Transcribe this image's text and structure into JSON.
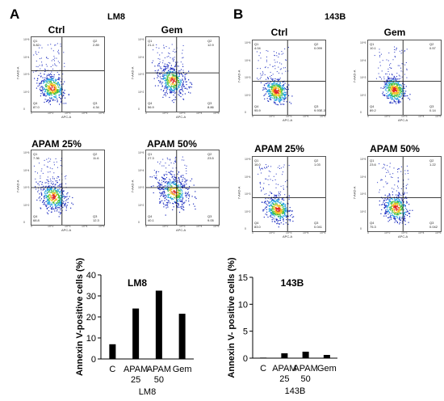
{
  "panels": [
    {
      "letter": "A",
      "cell_line": "LM8"
    },
    {
      "letter": "B",
      "cell_line": "143B"
    }
  ],
  "flow_plots": [
    {
      "id": "lm8-ctrl",
      "title": "Ctrl",
      "q1": "Q1\n5.82",
      "q2": "Q2\n2.89",
      "q3": "Q3\n4.34",
      "q4": "Q4\n87.0"
    },
    {
      "id": "lm8-gem",
      "title": "Gem",
      "q1": "Q1\n21.4",
      "q2": "Q2\n12.9",
      "q3": "Q3\n8.86",
      "q4": "Q4\n56.9"
    },
    {
      "id": "lm8-apam25",
      "title": "APAM 25%",
      "q1": "Q1\n7.36",
      "q2": "Q2\n11.6",
      "q3": "Q3\n12.3",
      "q4": "Q4\n68.8"
    },
    {
      "id": "lm8-apam50",
      "title": "APAM 50%",
      "q1": "Q1\n27.3",
      "q2": "Q2\n23.5",
      "q3": "Q3\n9.05",
      "q4": "Q4\n40.1"
    },
    {
      "id": "143b-ctrl",
      "title": "Ctrl",
      "q1": "Q1\n4.04",
      "q2": "Q2\n0.099",
      "q3": "Q3\n9.93E-3",
      "q4": "Q4\n95.9"
    },
    {
      "id": "143b-gem",
      "title": "Gem",
      "q1": "Q1\n10.1",
      "q2": "Q2\n0.57",
      "q3": "Q3\n0.14",
      "q4": "Q4\n89.2"
    },
    {
      "id": "143b-apam25",
      "title": "APAM 25%",
      "q1": "Q1\n16.0",
      "q2": "Q2\n1.03",
      "q3": "Q3\n0.041",
      "q4": "Q4\n83.0"
    },
    {
      "id": "143b-apam50",
      "title": "APAM 50%",
      "q1": "Q1\n23.6",
      "q2": "Q2\n1.22",
      "q3": "Q3\n0.042",
      "q4": "Q4\n75.3"
    }
  ],
  "flow_axis": {
    "x": "APC-A",
    "y": "7-AAD-A",
    "yticks": [
      "10^5",
      "10^4",
      "10^3",
      "10^2",
      "0"
    ],
    "xticks": [
      "0",
      "10^2",
      "10^3",
      "10^4",
      "10^5"
    ]
  },
  "chart_data": [
    {
      "type": "bar",
      "title": "LM8",
      "categories": [
        "C",
        "APAM\n25",
        "APAM\n50",
        "Gem"
      ],
      "values": [
        7,
        24,
        32.5,
        21.5
      ],
      "xlabel": "LM8",
      "ylabel": "Annexin V-positive cells (%)",
      "ylim": [
        0,
        40
      ],
      "yticks": [
        "0",
        "10",
        "20",
        "30",
        "40"
      ],
      "bar_color": "#000000"
    },
    {
      "type": "bar",
      "title": "143B",
      "categories": [
        "C",
        "APAM\n25",
        "APAM\n50",
        "Gem"
      ],
      "values": [
        0.1,
        0.9,
        1.2,
        0.6
      ],
      "xlabel": "143B",
      "ylabel": "Annexin V- positive cells (%)",
      "ylim": [
        0,
        15
      ],
      "yticks": [
        "0",
        "5",
        "10",
        "15"
      ],
      "bar_color": "#000000"
    }
  ]
}
